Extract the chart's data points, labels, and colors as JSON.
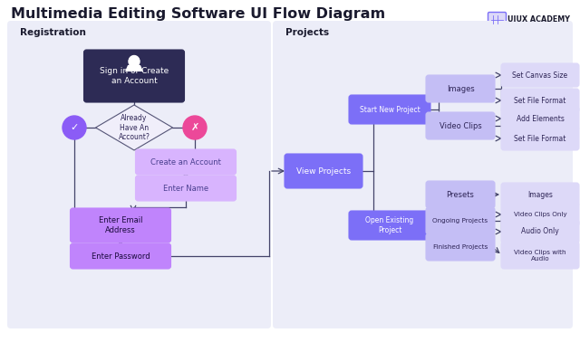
{
  "title": "Multimedia Editing Software UI Flow Diagram",
  "title_fontsize": 11.5,
  "title_color": "#1a1a2e",
  "bg_color": "#ffffff",
  "panel_color": "#ecedf8",
  "reg_label": "Registration",
  "proj_label": "Projects",
  "brand_text": "UIUX ACADEMY",
  "dark_box_color": "#2d2b55",
  "purple_dark": "#7c6ff7",
  "purple_mid": "#c084fc",
  "purple_light": "#d8b4fe",
  "light_box_color": "#c4bef5",
  "lightest_box": "#ddd9f8",
  "green_circle": "#8b5cf6",
  "pink_circle": "#ec4899",
  "line_color": "#44446a",
  "white": "#ffffff"
}
